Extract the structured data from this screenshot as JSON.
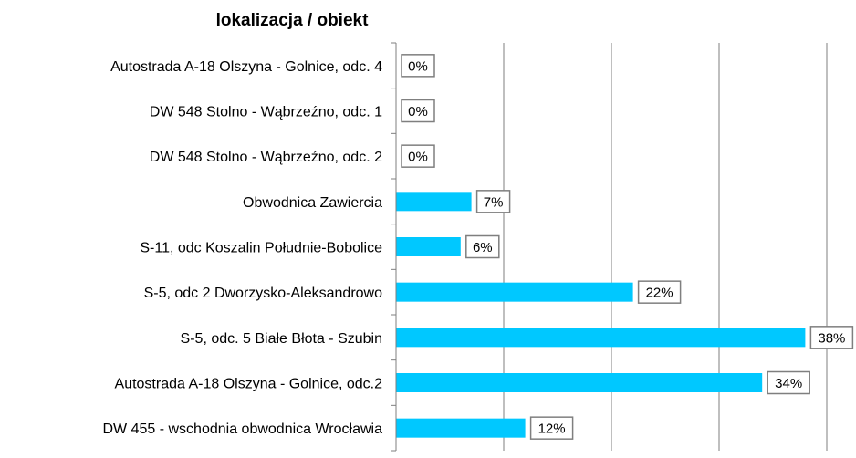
{
  "chart_data": {
    "type": "bar",
    "orientation": "horizontal",
    "title": "lokalizacja / obiekt",
    "categories": [
      "Autostrada A-18 Olszyna - Golnice, odc. 4",
      "DW 548 Stolno - Wąbrzeźno, odc. 1",
      "DW 548 Stolno - Wąbrzeźno, odc. 2",
      "Obwodnica Zawiercia",
      "S-11, odc Koszalin Południe-Bobolice",
      "S-5, odc 2 Dworzysko-Aleksandrowo",
      "S-5, odc. 5 Białe Błota - Szubin",
      "Autostrada A-18 Olszyna - Golnice, odc.2",
      "DW 455 - wschodnia obwodnica Wrocławia"
    ],
    "values": [
      0,
      0,
      0,
      7,
      6,
      22,
      38,
      34,
      12
    ],
    "value_labels": [
      "0%",
      "0%",
      "0%",
      "7%",
      "6%",
      "22%",
      "38%",
      "34%",
      "12%"
    ],
    "unit": "%",
    "xlim": [
      0,
      40
    ],
    "gridlines": [
      10,
      20,
      30,
      40
    ],
    "grid": true,
    "legend": "none",
    "bar_color": "#00c8ff",
    "grid_color": "#7f7f7f",
    "label_box_color": "#7f7f7f"
  }
}
